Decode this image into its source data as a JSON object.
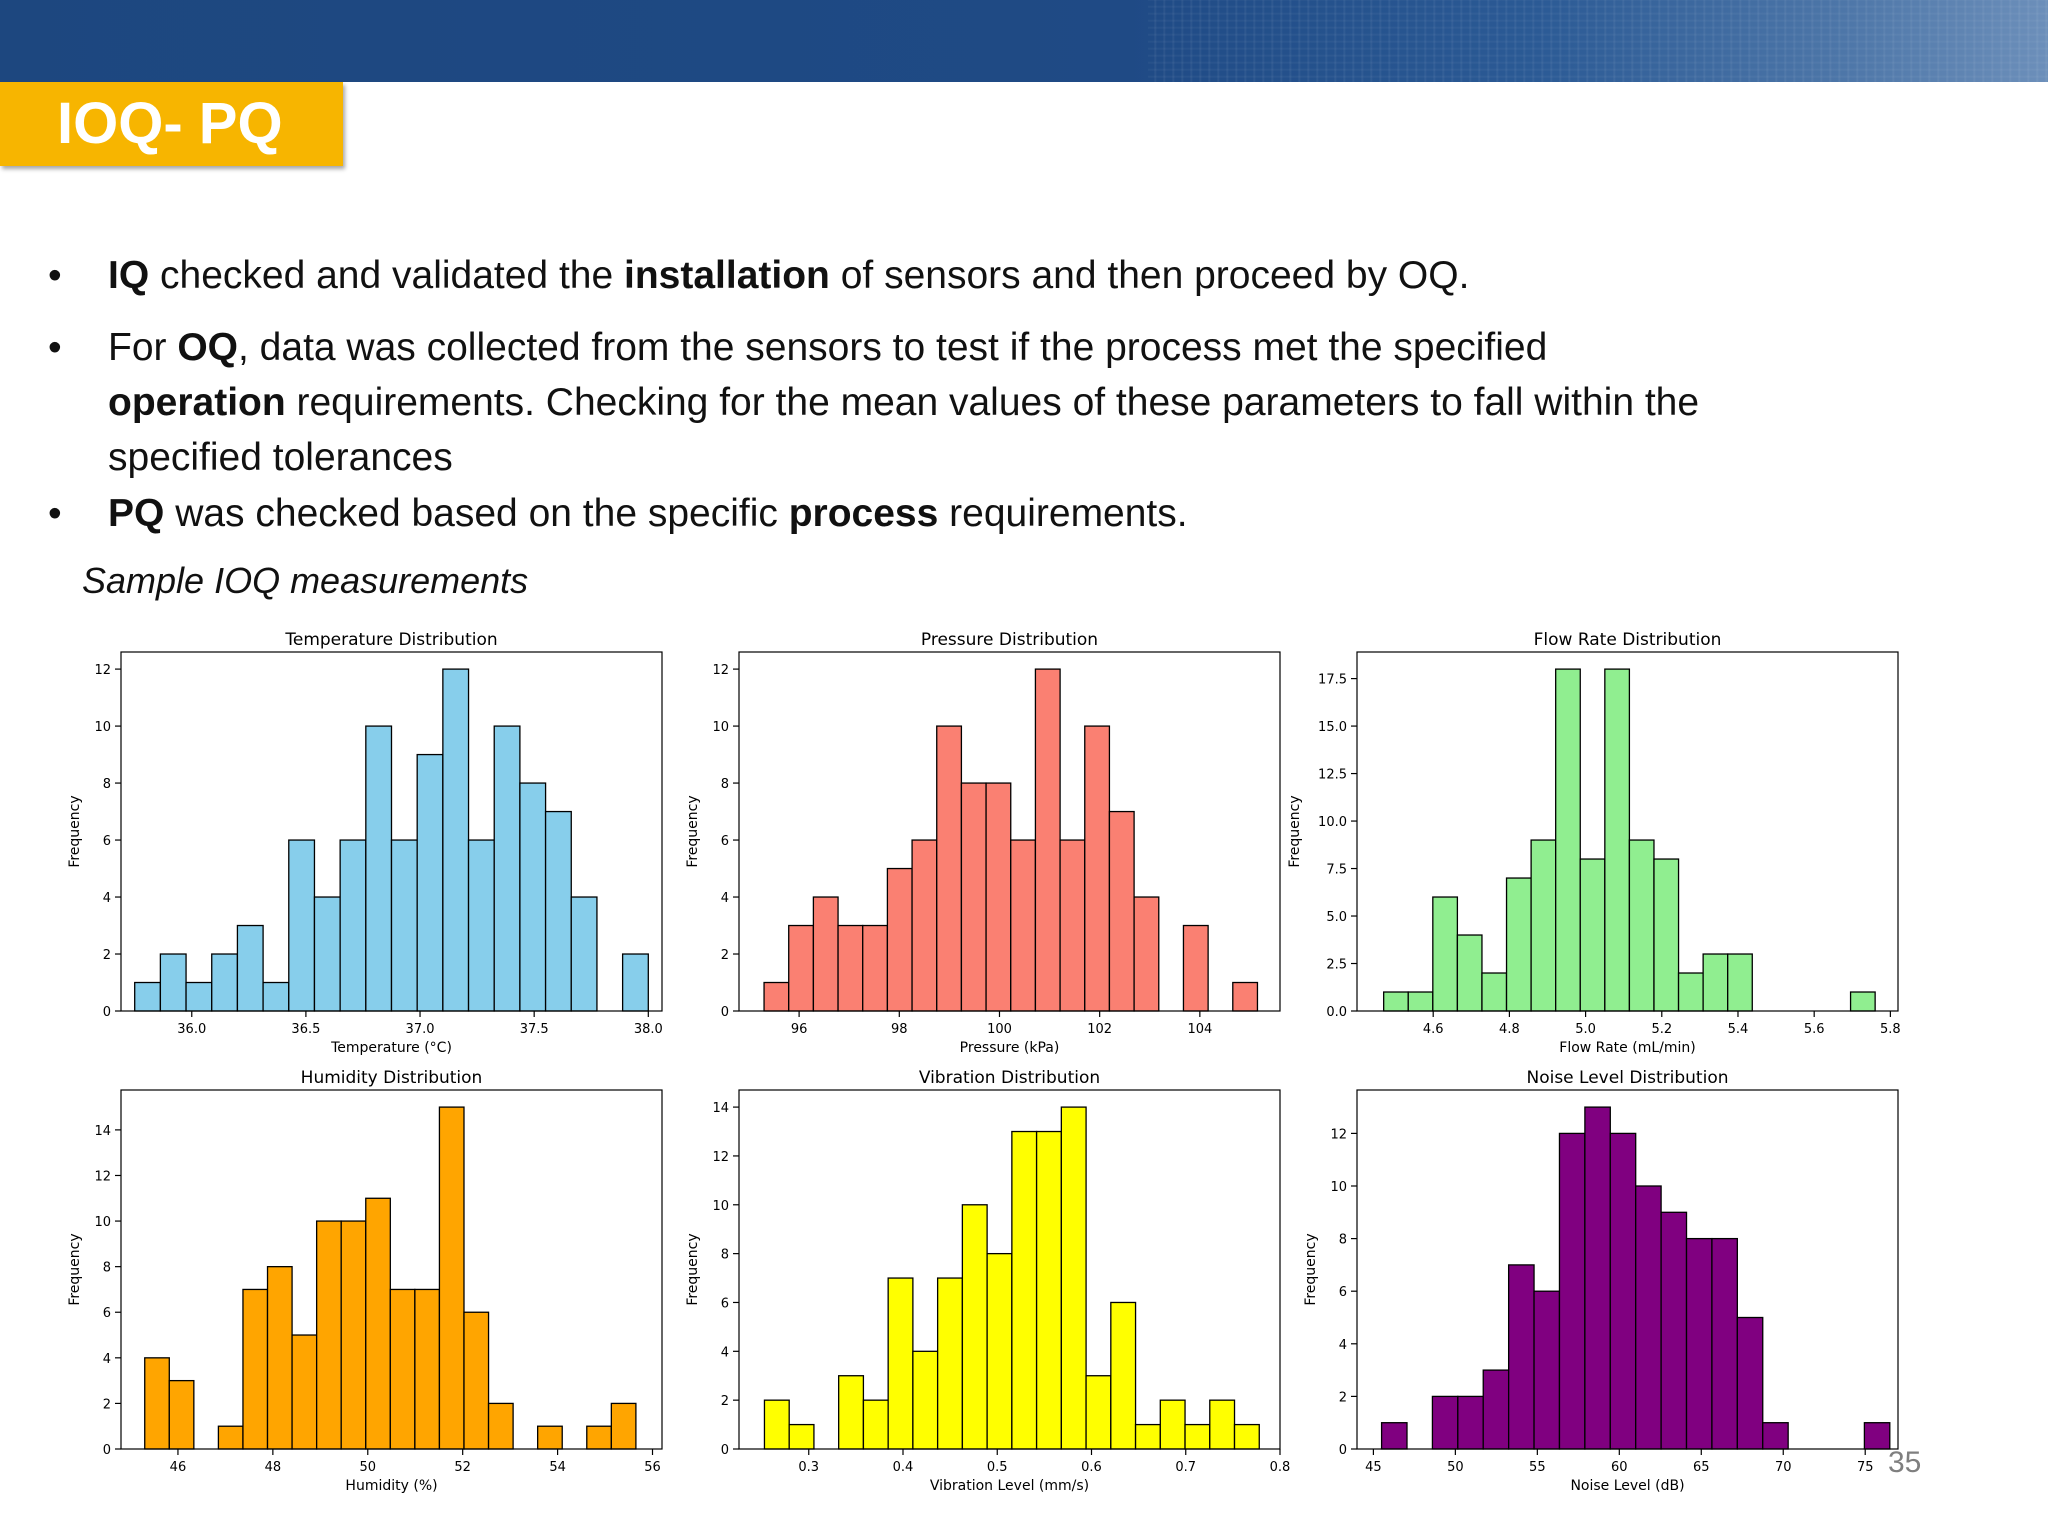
{
  "slide": {
    "title": "IOQ- PQ",
    "bullets": [
      {
        "dot": "•",
        "lines": [
          [
            {
              "t": "IQ",
              "b": true
            },
            {
              "t": " checked and validated the ",
              "b": false
            },
            {
              "t": "installation",
              "b": true
            },
            {
              "t": " of sensors and then proceed by OQ.",
              "b": false
            }
          ]
        ]
      },
      {
        "dot": "•",
        "lines": [
          [
            {
              "t": "For ",
              "b": false
            },
            {
              "t": "OQ",
              "b": true
            },
            {
              "t": ", data was collected from the sensors to test if the process met the specified",
              "b": false
            }
          ],
          [
            {
              "t": "operation",
              "b": true
            },
            {
              "t": " requirements. Checking for the mean values of these parameters to fall within the",
              "b": false
            }
          ],
          [
            {
              "t": "specified tolerances",
              "b": false
            }
          ]
        ]
      },
      {
        "dot": "•",
        "lines": [
          [
            {
              "t": "PQ",
              "b": true
            },
            {
              "t": " was checked based on the specific ",
              "b": false
            },
            {
              "t": "process",
              "b": true
            },
            {
              "t": " requirements.",
              "b": false
            }
          ]
        ]
      }
    ],
    "caption": "Sample IOQ measurements",
    "page_number": "35"
  },
  "chart_data": [
    {
      "type": "bar",
      "title": "Temperature Distribution",
      "xlabel": "Temperature (°C)",
      "ylabel": "Frequency",
      "color": "#87ceeb",
      "bin_start": 35.75,
      "bin_width": 0.1125,
      "values": [
        1,
        2,
        1,
        2,
        3,
        1,
        6,
        4,
        6,
        10,
        6,
        9,
        12,
        6,
        10,
        8,
        7,
        4,
        0,
        2
      ],
      "xlim": [
        35.69,
        38.06
      ],
      "ylim": [
        0,
        12.6
      ],
      "xticks": [
        36.0,
        36.5,
        37.0,
        37.5,
        38.0
      ],
      "xtick_labels": [
        "36.0",
        "36.5",
        "37.0",
        "37.5",
        "38.0"
      ],
      "yticks": [
        0,
        2,
        4,
        6,
        8,
        10,
        12
      ],
      "ytick_labels": [
        "0",
        "2",
        "4",
        "6",
        "8",
        "10",
        "12"
      ],
      "grid": false
    },
    {
      "type": "bar",
      "title": "Pressure Distribution",
      "xlabel": "Pressure (kPa)",
      "ylabel": "Frequency",
      "color": "#fa8072",
      "bin_start": 95.3,
      "bin_width": 0.4925,
      "values": [
        1,
        3,
        4,
        3,
        3,
        5,
        6,
        10,
        8,
        8,
        6,
        12,
        6,
        10,
        7,
        4,
        0,
        3,
        0,
        1
      ],
      "xlim": [
        94.8,
        105.6
      ],
      "ylim": [
        0,
        12.6
      ],
      "xticks": [
        96,
        98,
        100,
        102,
        104
      ],
      "xtick_labels": [
        "96",
        "98",
        "100",
        "102",
        "104"
      ],
      "yticks": [
        0,
        2,
        4,
        6,
        8,
        10,
        12
      ],
      "ytick_labels": [
        "0",
        "2",
        "4",
        "6",
        "8",
        "10",
        "12"
      ],
      "grid": false
    },
    {
      "type": "bar",
      "title": "Flow Rate Distribution",
      "xlabel": "Flow Rate (mL/min)",
      "ylabel": "Frequency",
      "color": "#90ee90",
      "bin_start": 4.47,
      "bin_width": 0.0645,
      "values": [
        1,
        1,
        6,
        4,
        2,
        7,
        9,
        18,
        8,
        18,
        9,
        8,
        2,
        3,
        3,
        0,
        0,
        0,
        0,
        1
      ],
      "xlim": [
        4.4,
        5.82
      ],
      "ylim": [
        0,
        18.9
      ],
      "xticks": [
        4.6,
        4.8,
        5.0,
        5.2,
        5.4,
        5.6,
        5.8
      ],
      "xtick_labels": [
        "4.6",
        "4.8",
        "5.0",
        "5.2",
        "5.4",
        "5.6",
        "5.8"
      ],
      "yticks": [
        0,
        2.5,
        5,
        7.5,
        10,
        12.5,
        15,
        17.5
      ],
      "ytick_labels": [
        "0.0",
        "2.5",
        "5.0",
        "7.5",
        "10.0",
        "12.5",
        "15.0",
        "17.5"
      ],
      "grid": false
    },
    {
      "type": "bar",
      "title": "Humidity Distribution",
      "xlabel": "Humidity (%)",
      "ylabel": "Frequency",
      "color": "#ffa500",
      "bin_start": 45.3,
      "bin_width": 0.5175,
      "values": [
        4,
        3,
        0,
        1,
        7,
        8,
        5,
        10,
        10,
        11,
        7,
        7,
        15,
        6,
        2,
        0,
        1,
        0,
        1,
        2
      ],
      "xlim": [
        44.8,
        56.2
      ],
      "ylim": [
        0,
        15.75
      ],
      "xticks": [
        46,
        48,
        50,
        52,
        54,
        56
      ],
      "xtick_labels": [
        "46",
        "48",
        "50",
        "52",
        "54",
        "56"
      ],
      "yticks": [
        0,
        2,
        4,
        6,
        8,
        10,
        12,
        14
      ],
      "ytick_labels": [
        "0",
        "2",
        "4",
        "6",
        "8",
        "10",
        "12",
        "14"
      ],
      "grid": false
    },
    {
      "type": "bar",
      "title": "Vibration Distribution",
      "xlabel": "Vibration Level (mm/s)",
      "ylabel": "Frequency",
      "color": "#ffff00",
      "bin_start": 0.253,
      "bin_width": 0.02625,
      "values": [
        2,
        1,
        0,
        3,
        2,
        7,
        4,
        7,
        10,
        8,
        13,
        13,
        14,
        3,
        6,
        1,
        2,
        1,
        2,
        1
      ],
      "xlim": [
        0.226,
        0.8
      ],
      "ylim": [
        0,
        14.7
      ],
      "xticks": [
        0.3,
        0.4,
        0.5,
        0.6,
        0.7,
        0.8
      ],
      "xtick_labels": [
        "0.3",
        "0.4",
        "0.5",
        "0.6",
        "0.7",
        "0.8"
      ],
      "yticks": [
        0,
        2,
        4,
        6,
        8,
        10,
        12,
        14
      ],
      "ytick_labels": [
        "0",
        "2",
        "4",
        "6",
        "8",
        "10",
        "12",
        "14"
      ],
      "grid": false
    },
    {
      "type": "bar",
      "title": "Noise Level Distribution",
      "xlabel": "Noise Level (dB)",
      "ylabel": "Frequency",
      "color": "#800080",
      "bin_start": 45.5,
      "bin_width": 1.55,
      "values": [
        1,
        0,
        2,
        2,
        3,
        7,
        6,
        12,
        13,
        12,
        10,
        9,
        8,
        8,
        5,
        1,
        0,
        0,
        0,
        1
      ],
      "xlim": [
        44.0,
        77.0
      ],
      "ylim": [
        0,
        13.65
      ],
      "xticks": [
        45,
        50,
        55,
        60,
        65,
        70,
        75
      ],
      "xtick_labels": [
        "45",
        "50",
        "55",
        "60",
        "65",
        "70",
        "75"
      ],
      "yticks": [
        0,
        2,
        4,
        6,
        8,
        10,
        12
      ],
      "ytick_labels": [
        "0",
        "2",
        "4",
        "6",
        "8",
        "10",
        "12"
      ],
      "grid": false
    }
  ]
}
